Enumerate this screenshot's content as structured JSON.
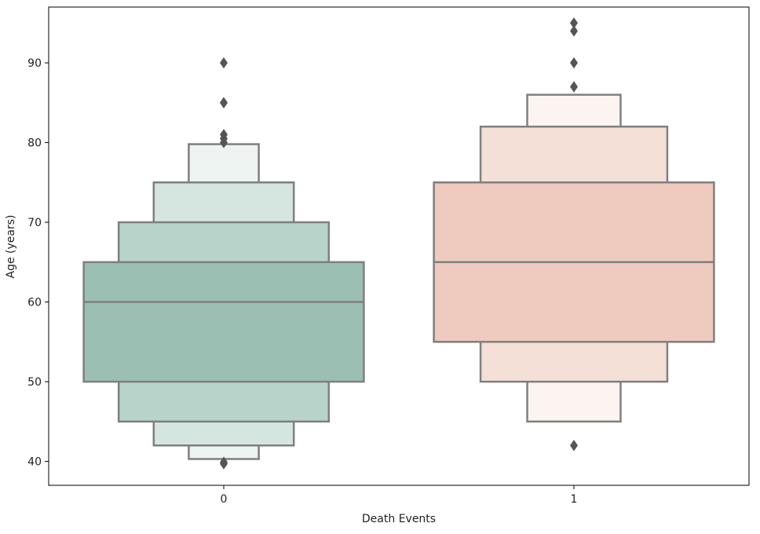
{
  "chart_data": {
    "type": "boxen",
    "title": "",
    "xlabel": "Death Events",
    "ylabel": "Age (years)",
    "categories": [
      "0",
      "1"
    ],
    "ylim": [
      37,
      97
    ],
    "yticks": [
      40,
      50,
      60,
      70,
      80,
      90
    ],
    "grid": false,
    "legend": "none",
    "groups": [
      {
        "category": "0",
        "median": 60,
        "levels": [
          {
            "low": 50,
            "high": 65,
            "color": "#9bbfb3"
          },
          {
            "low": 45,
            "high": 70,
            "color": "#b8d4ca"
          },
          {
            "low": 42,
            "high": 75,
            "color": "#d5e6e0"
          },
          {
            "low": 40.3,
            "high": 79.8,
            "color": "#edf4f1"
          }
        ],
        "outliers": [
          90,
          85,
          85,
          81,
          80.5,
          80,
          39.9,
          39.7
        ]
      },
      {
        "category": "1",
        "median": 65,
        "levels": [
          {
            "low": 55,
            "high": 75,
            "color": "#efcabe"
          },
          {
            "low": 50,
            "high": 82,
            "color": "#f5e0d8"
          },
          {
            "low": 45,
            "high": 86,
            "color": "#fcf4f1"
          }
        ],
        "outliers": [
          95,
          94,
          90,
          87,
          42
        ]
      }
    ]
  }
}
